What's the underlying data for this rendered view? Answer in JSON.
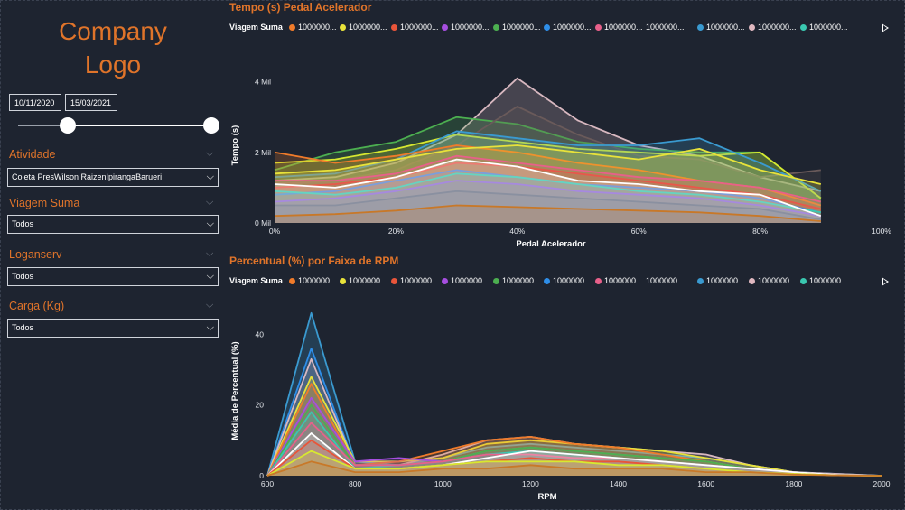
{
  "logo": {
    "line1": "Company",
    "line2": "Logo"
  },
  "filters": {
    "date_start": "10/11/2020",
    "date_end": "15/03/2021",
    "slicers": [
      {
        "label": "Atividade",
        "value": "Coleta PresWilson RaizenIpirangaBarueri"
      },
      {
        "label": "Viagem Suma",
        "value": "Todos"
      },
      {
        "label": "Loganserv",
        "value": "Todos"
      },
      {
        "label": "Carga (Kg)",
        "value": "Todos"
      }
    ]
  },
  "legend": {
    "label": "Viagem Suma",
    "items": [
      {
        "text": "1000000...",
        "color": "#f07b2a"
      },
      {
        "text": "1000000...",
        "color": "#e8e23a"
      },
      {
        "text": "1000000...",
        "color": "#e8553a"
      },
      {
        "text": "1000000...",
        "color": "#a64ee0"
      },
      {
        "text": "1000000...",
        "color": "#4caf50"
      },
      {
        "text": "1000000...",
        "color": "#2e8ee8"
      },
      {
        "text": "1000000...",
        "color": "#e8608a"
      },
      {
        "text": "1000000...",
        "color": ""
      },
      {
        "text": "1000000...",
        "color": "#3a9ad0"
      },
      {
        "text": "1000000...",
        "color": "#e0b8c0"
      },
      {
        "text": "1000000...",
        "color": "#3ac8b0"
      }
    ]
  },
  "colors": {
    "accent": "#e0742a",
    "background": "#1e2430"
  },
  "chart_data": [
    {
      "type": "area",
      "title": "Tempo (s) Pedal Acelerador",
      "xlabel": "Pedal Acelerador",
      "ylabel": "Tempo (s)",
      "x_tick_labels": [
        "0%",
        "20%",
        "40%",
        "60%",
        "80%",
        "100%"
      ],
      "y_tick_labels": [
        "0 Mil",
        "2 Mil",
        "4 Mil"
      ],
      "xlim": [
        0,
        100
      ],
      "ylim": [
        0,
        4400
      ],
      "x": [
        0,
        10,
        20,
        30,
        40,
        50,
        60,
        70,
        80,
        90
      ],
      "series": [
        {
          "color": "#d8b8c0",
          "values": [
            1200,
            1300,
            1700,
            2500,
            4100,
            2900,
            2200,
            1900,
            1300,
            900
          ]
        },
        {
          "color": "#4caf50",
          "values": [
            1500,
            2000,
            2300,
            3000,
            2800,
            2300,
            2100,
            2000,
            2000,
            700
          ]
        },
        {
          "color": "#6a5a5a",
          "values": [
            1100,
            1200,
            1500,
            2200,
            3300,
            2500,
            1900,
            1800,
            1300,
            1500
          ]
        },
        {
          "color": "#d7e830",
          "values": [
            1700,
            1800,
            2100,
            2500,
            2300,
            2100,
            2000,
            1900,
            2000,
            700
          ]
        },
        {
          "color": "#3a9ad0",
          "values": [
            1300,
            1400,
            1800,
            2600,
            2400,
            2200,
            2200,
            2400,
            1700,
            900
          ]
        },
        {
          "color": "#f07b2a",
          "values": [
            2000,
            1700,
            1900,
            2200,
            2000,
            1700,
            1500,
            1200,
            1000,
            500
          ]
        },
        {
          "color": "#e8e23a",
          "values": [
            1400,
            1500,
            1800,
            2100,
            2200,
            2000,
            1800,
            2100,
            1500,
            1100
          ]
        },
        {
          "color": "#e8553a",
          "values": [
            1000,
            1100,
            1300,
            1700,
            1600,
            1400,
            1200,
            1000,
            800,
            400
          ]
        },
        {
          "color": "#2e8ee8",
          "values": [
            800,
            900,
            1200,
            1500,
            1300,
            1100,
            1000,
            900,
            700,
            300
          ]
        },
        {
          "color": "#e8608a",
          "values": [
            1200,
            1200,
            1400,
            1900,
            1700,
            1500,
            1300,
            1200,
            1000,
            600
          ]
        },
        {
          "color": "#a64ee0",
          "values": [
            600,
            700,
            900,
            1200,
            1100,
            900,
            800,
            700,
            500,
            200
          ]
        },
        {
          "color": "#3ac8b0",
          "values": [
            900,
            800,
            1000,
            1400,
            1300,
            1100,
            900,
            800,
            600,
            300
          ]
        },
        {
          "color": "#ffffff",
          "values": [
            1100,
            1000,
            1300,
            1800,
            1600,
            1200,
            1100,
            900,
            800,
            200
          ]
        },
        {
          "color": "#8a90a0",
          "values": [
            500,
            500,
            700,
            900,
            800,
            700,
            600,
            500,
            400,
            100
          ]
        },
        {
          "color": "#c87828",
          "values": [
            200,
            250,
            350,
            500,
            450,
            400,
            350,
            300,
            200,
            50
          ]
        }
      ]
    },
    {
      "type": "area",
      "title": "Percentual (%) por Faixa de RPM",
      "xlabel": "RPM",
      "ylabel": "Média de Percentual (%)",
      "x_tick_labels": [
        "600",
        "800",
        "1000",
        "1200",
        "1400",
        "1600",
        "1800",
        "2000"
      ],
      "y_tick_labels": [
        "0",
        "20",
        "40"
      ],
      "xlim": [
        600,
        2000
      ],
      "ylim": [
        0,
        48
      ],
      "x": [
        600,
        700,
        800,
        900,
        1000,
        1100,
        1200,
        1300,
        1400,
        1500,
        1600,
        1700,
        1800,
        1900,
        2000
      ],
      "series": [
        {
          "color": "#3a9ad0",
          "values": [
            0,
            46,
            4,
            3,
            5,
            8,
            9,
            8,
            7,
            6,
            5,
            3,
            1,
            0.5,
            0
          ]
        },
        {
          "color": "#2e8ee8",
          "values": [
            0,
            36,
            3,
            3,
            4,
            7,
            8,
            7,
            6,
            5,
            4,
            2,
            1,
            0.3,
            0
          ]
        },
        {
          "color": "#d8b8c0",
          "values": [
            0,
            33,
            3,
            3,
            6,
            10,
            11,
            9,
            8,
            7,
            6,
            3,
            1,
            0.5,
            0
          ]
        },
        {
          "color": "#e8e23a",
          "values": [
            0,
            28,
            4,
            4,
            5,
            9,
            10,
            9,
            8,
            7,
            5,
            3,
            1,
            0.2,
            0
          ]
        },
        {
          "color": "#f07b2a",
          "values": [
            0,
            26,
            3,
            4,
            7,
            10,
            11,
            9,
            8,
            6,
            4,
            2,
            1,
            0.2,
            0
          ]
        },
        {
          "color": "#a64ee0",
          "values": [
            0,
            22,
            4,
            5,
            4,
            6,
            7,
            6,
            5,
            4,
            3,
            2,
            1,
            0.2,
            0
          ]
        },
        {
          "color": "#4caf50",
          "values": [
            0,
            20,
            3,
            3,
            4,
            7,
            8,
            7,
            6,
            5,
            4,
            2,
            1,
            0.2,
            0
          ]
        },
        {
          "color": "#3ac8b0",
          "values": [
            0,
            18,
            2,
            3,
            4,
            6,
            7,
            6,
            5,
            4,
            3,
            2,
            1,
            0.2,
            0
          ]
        },
        {
          "color": "#e8608a",
          "values": [
            0,
            15,
            3,
            3,
            4,
            6,
            6,
            5,
            5,
            4,
            3,
            2,
            1,
            0.2,
            0
          ]
        },
        {
          "color": "#ffffff",
          "values": [
            0,
            12,
            2,
            2,
            3,
            5,
            7,
            6,
            5,
            4,
            3,
            2,
            1,
            0.2,
            0
          ]
        },
        {
          "color": "#e8553a",
          "values": [
            0,
            10,
            2,
            2,
            3,
            4,
            5,
            4,
            4,
            3,
            2,
            1,
            0.5,
            0.1,
            0
          ]
        },
        {
          "color": "#d7e830",
          "values": [
            0,
            7,
            2,
            2,
            3,
            4,
            4,
            4,
            3,
            3,
            2,
            1,
            0.5,
            0.1,
            0
          ]
        },
        {
          "color": "#c87828",
          "values": [
            0,
            4,
            1,
            1,
            2,
            2,
            3,
            2,
            2,
            2,
            1,
            1,
            0.3,
            0.1,
            0
          ]
        }
      ]
    }
  ]
}
